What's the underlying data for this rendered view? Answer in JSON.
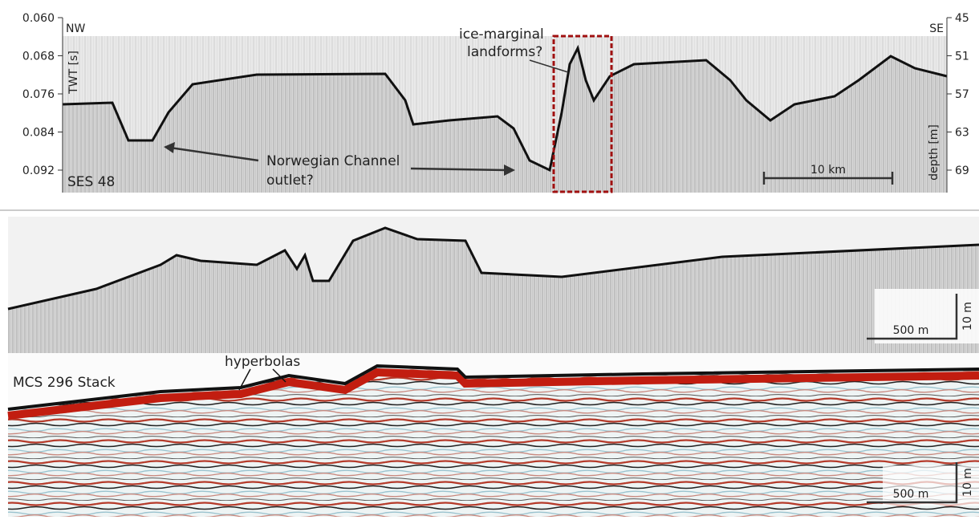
{
  "top_panel": {
    "left_direction": "NW",
    "right_direction": "SE",
    "left_axis_label": "TWT [s]",
    "right_axis_label": "depth [m]",
    "left_ticks": [
      "0.060",
      "0.068",
      "0.076",
      "0.084",
      "0.092"
    ],
    "right_ticks": [
      "45",
      "51",
      "57",
      "63",
      "69"
    ],
    "profile_label": "SES 48",
    "scale_bar": "10 km",
    "annotation_landforms": [
      "ice-marginal",
      "landforms?"
    ],
    "annotation_channel": [
      "Norwegian Channel",
      "outlet?"
    ]
  },
  "middle_panel": {
    "vertical_scale": "10 m",
    "horizontal_scale": "500 m"
  },
  "bottom_panel": {
    "profile_label": "MCS 296 Stack",
    "annotation": "hyperbolas",
    "horizontal_scale": "500 m",
    "vertical_scale": "10 m"
  }
}
